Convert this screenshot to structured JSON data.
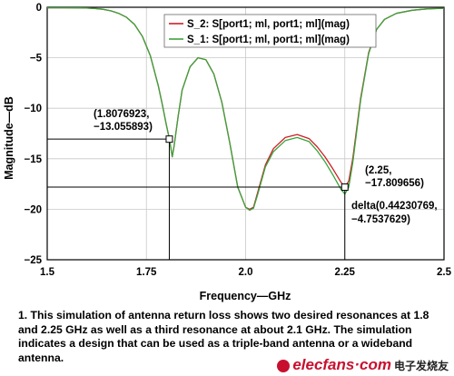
{
  "chart_data": {
    "type": "line",
    "title": "",
    "xlabel": "Frequency—GHz",
    "ylabel": "Magnitude—dB",
    "xlim": [
      1.5,
      2.5
    ],
    "ylim": [
      -25,
      0
    ],
    "x_ticks": [
      1.5,
      1.75,
      2.0,
      2.25,
      2.5
    ],
    "x_tick_labels": [
      "1.5",
      "1.75",
      "2.0",
      "2.25",
      "2.5"
    ],
    "y_ticks": [
      0,
      -5,
      -10,
      -15,
      -20,
      -25
    ],
    "y_tick_labels": [
      "0",
      "−5",
      "−10",
      "−15",
      "−20",
      "−25"
    ],
    "grid": true,
    "legend_position": "top-right",
    "series": [
      {
        "name": "S_2: S[port1; ml, port1; ml](mag)",
        "color": "#cc1f26",
        "x": [
          1.5,
          1.52,
          1.55,
          1.58,
          1.6,
          1.62,
          1.64,
          1.66,
          1.68,
          1.7,
          1.72,
          1.74,
          1.76,
          1.78,
          1.79,
          1.8,
          1.808,
          1.815,
          1.82,
          1.83,
          1.84,
          1.86,
          1.88,
          1.9,
          1.92,
          1.94,
          1.96,
          1.98,
          2.0,
          2.01,
          2.02,
          2.03,
          2.05,
          2.07,
          2.1,
          2.13,
          2.16,
          2.18,
          2.2,
          2.22,
          2.24,
          2.25,
          2.26,
          2.27,
          2.29,
          2.31,
          2.33,
          2.35,
          2.38,
          2.42,
          2.46,
          2.5
        ],
        "y": [
          -0.05,
          -0.05,
          -0.05,
          -0.06,
          -0.08,
          -0.12,
          -0.2,
          -0.35,
          -0.6,
          -1.0,
          -1.7,
          -2.9,
          -4.8,
          -7.8,
          -9.6,
          -11.6,
          -13.06,
          -14.8,
          -13.7,
          -10.8,
          -8.2,
          -5.9,
          -5.0,
          -5.2,
          -6.6,
          -9.4,
          -13.4,
          -17.8,
          -19.8,
          -20.0,
          -19.8,
          -18.4,
          -15.6,
          -14.0,
          -12.9,
          -12.6,
          -13.0,
          -13.8,
          -14.8,
          -16.0,
          -17.3,
          -17.81,
          -17.2,
          -15.0,
          -9.0,
          -4.5,
          -2.2,
          -1.2,
          -0.6,
          -0.3,
          -0.15,
          -0.1
        ]
      },
      {
        "name": "S_1: S[port1; ml, port1; ml](mag)",
        "color": "#3aa33c",
        "x": [
          1.5,
          1.52,
          1.55,
          1.58,
          1.6,
          1.62,
          1.64,
          1.66,
          1.68,
          1.7,
          1.72,
          1.74,
          1.76,
          1.78,
          1.79,
          1.8,
          1.808,
          1.815,
          1.82,
          1.83,
          1.84,
          1.86,
          1.88,
          1.9,
          1.92,
          1.94,
          1.96,
          1.98,
          2.0,
          2.01,
          2.02,
          2.03,
          2.05,
          2.07,
          2.1,
          2.13,
          2.16,
          2.18,
          2.2,
          2.22,
          2.24,
          2.25,
          2.26,
          2.27,
          2.29,
          2.31,
          2.33,
          2.35,
          2.38,
          2.42,
          2.46,
          2.5
        ],
        "y": [
          -0.05,
          -0.05,
          -0.05,
          -0.06,
          -0.08,
          -0.12,
          -0.2,
          -0.35,
          -0.6,
          -1.0,
          -1.7,
          -2.9,
          -4.8,
          -7.8,
          -9.6,
          -11.6,
          -13.06,
          -14.8,
          -13.7,
          -10.8,
          -8.2,
          -5.9,
          -5.0,
          -5.2,
          -6.6,
          -9.4,
          -13.4,
          -17.8,
          -19.8,
          -20.1,
          -19.9,
          -18.6,
          -15.8,
          -14.3,
          -13.2,
          -12.9,
          -13.3,
          -14.2,
          -15.3,
          -16.6,
          -18.0,
          -18.5,
          -17.8,
          -15.4,
          -9.2,
          -4.6,
          -2.2,
          -1.2,
          -0.6,
          -0.3,
          -0.15,
          -0.1
        ]
      }
    ],
    "annotations": {
      "marker1": {
        "x": 1.8076923,
        "y": -13.055893,
        "line1": "(1.8076923,",
        "line2": "−13.055893)"
      },
      "marker2": {
        "x": 2.25,
        "y": -17.809656,
        "line1": "(2.25,",
        "line2": "−17.809656)"
      },
      "delta": {
        "line1": "delta(0.44230769,",
        "line2": "−4.7537629)"
      }
    }
  },
  "caption": "1. This simulation of antenna return loss shows two desired resonances at 1.8 and 2.25 GHz as well as a third resonance at about 2.1 GHz. The simulation indicates a design that can be used as a triple-band antenna or a wideband antenna.",
  "watermark": {
    "text": "elecfans·com",
    "cn_text": "电子发烧友"
  }
}
